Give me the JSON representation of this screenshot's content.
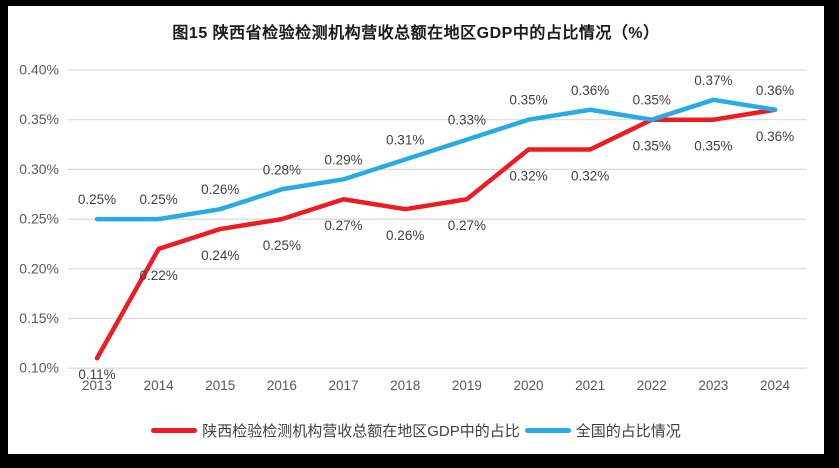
{
  "title": "图15 陕西省检验检测机构营收总额在地区GDP中的占比情况（%）",
  "colors": {
    "background": "#ffffff",
    "frame": "#000000",
    "grid": "#d9d9d9",
    "axis_text": "#595959",
    "label_text": "#404040",
    "title_text": "#1a1a1a",
    "shaanxi_red": "#ed1c24",
    "national_blue": "#29abe2"
  },
  "chart_data": {
    "type": "line",
    "title": "图15 陕西省检验检测机构营收总额在地区GDP中的占比情况（%）",
    "categories": [
      "2013",
      "2014",
      "2015",
      "2016",
      "2017",
      "2018",
      "2019",
      "2020",
      "2021",
      "2022",
      "2023",
      "2024"
    ],
    "yticks": [
      "0.40%",
      "0.35%",
      "0.30%",
      "0.25%",
      "0.20%",
      "0.15%",
      "0.10%"
    ],
    "ylim": [
      0.1,
      0.4
    ],
    "ytick_step": 0.05,
    "grid": true,
    "legend_position": "bottom",
    "xlabel": "",
    "ylabel": "",
    "series": [
      {
        "name": "陕西检验检测机构营收总额在地区GDP中的占比",
        "color": "#ed1c24",
        "values": [
          0.11,
          0.22,
          0.24,
          0.25,
          0.27,
          0.26,
          0.27,
          0.32,
          0.32,
          0.35,
          0.35,
          0.36
        ],
        "labels": [
          "0.11%",
          "0.22%",
          "0.24%",
          "0.25%",
          "0.27%",
          "0.26%",
          "0.27%",
          "0.32%",
          "0.32%",
          "0.35%",
          "0.35%",
          "0.36%"
        ],
        "label_side": "below"
      },
      {
        "name": "全国的占比情况",
        "color": "#29abe2",
        "values": [
          0.25,
          0.25,
          0.26,
          0.28,
          0.29,
          0.31,
          0.33,
          0.35,
          0.36,
          0.35,
          0.37,
          0.36
        ],
        "labels": [
          "0.25%",
          "0.25%",
          "0.26%",
          "0.28%",
          "0.29%",
          "0.31%",
          "0.33%",
          "0.35%",
          "0.36%",
          "0.35%",
          "0.37%",
          "0.36%"
        ],
        "label_side": "above"
      }
    ]
  }
}
